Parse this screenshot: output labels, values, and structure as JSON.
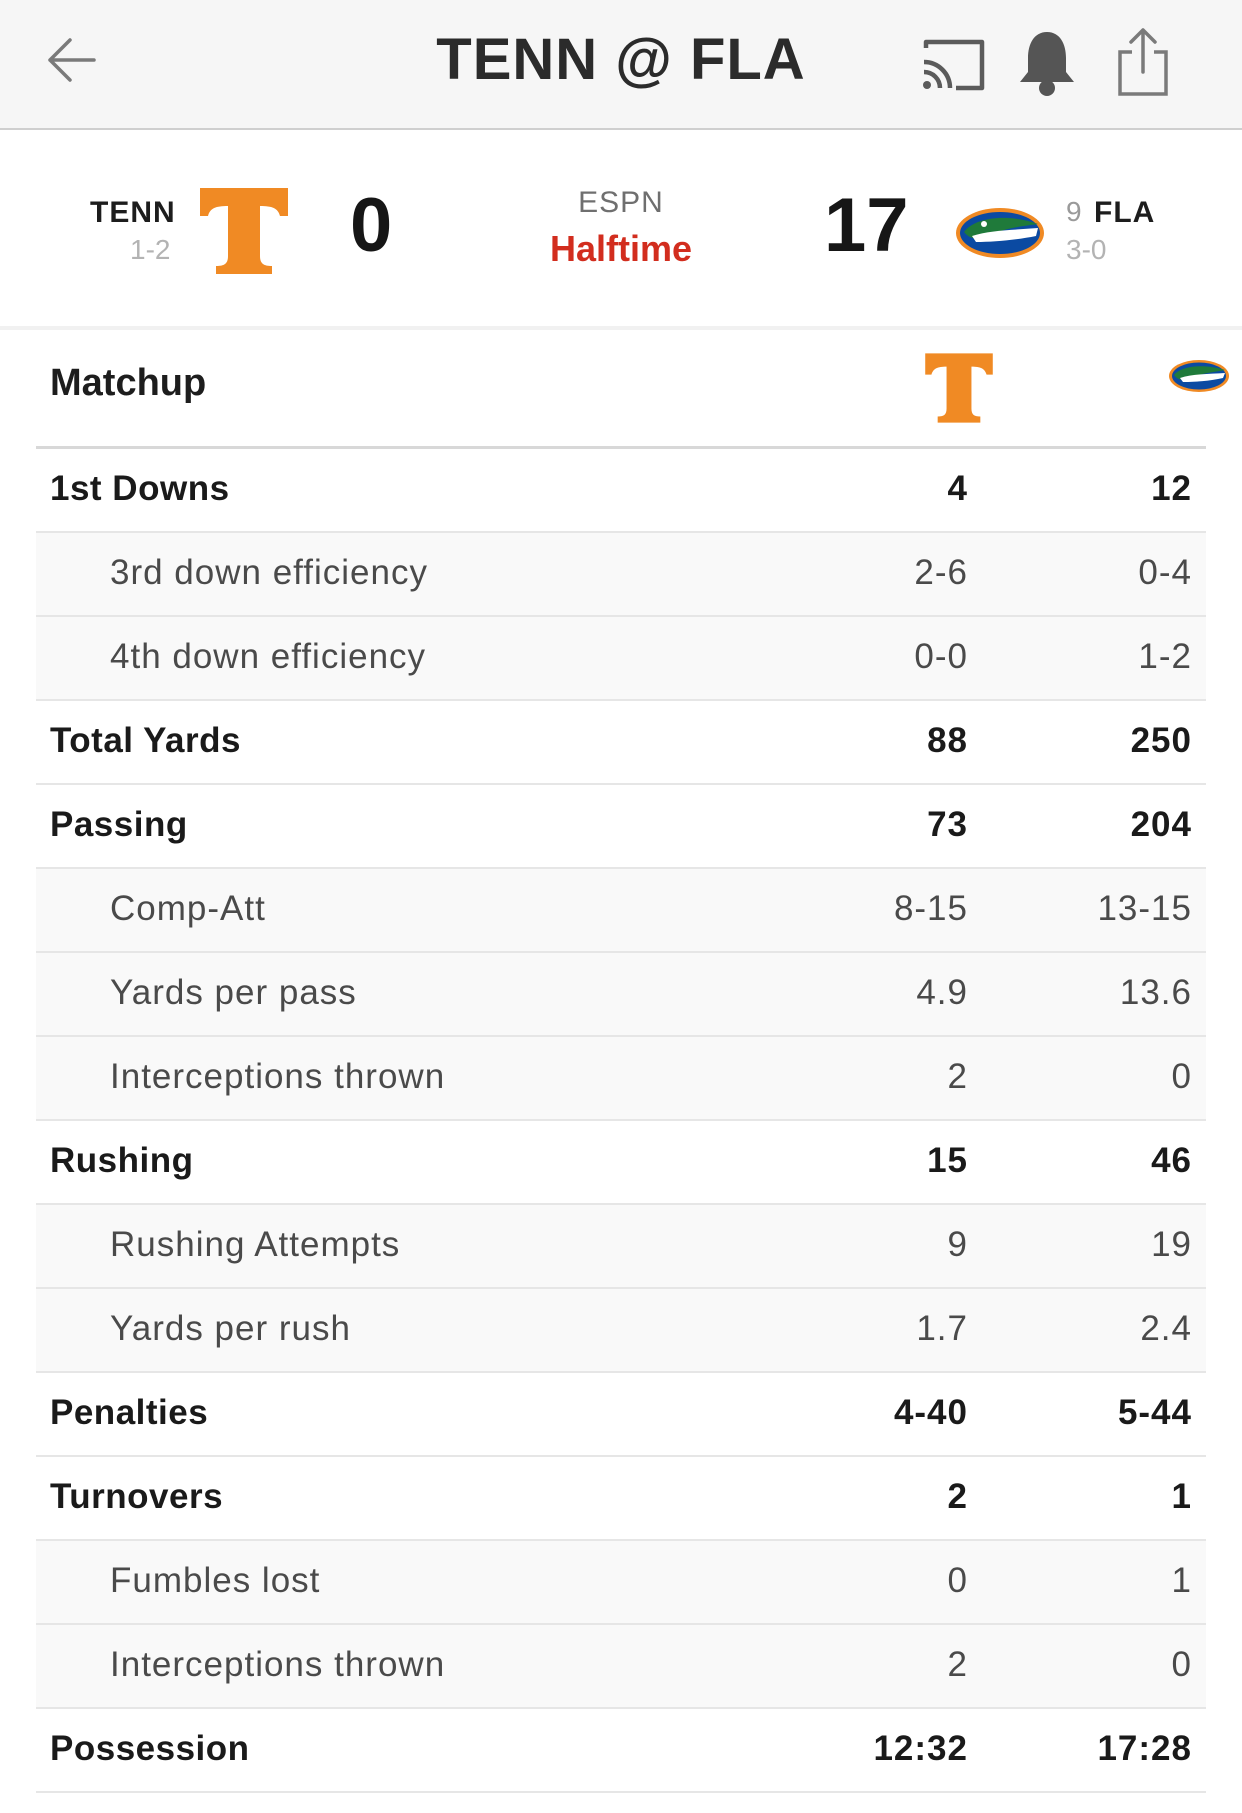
{
  "header": {
    "title": "TENN @ FLA",
    "icons": [
      "back-arrow-icon",
      "cast-icon",
      "bell-icon",
      "share-icon"
    ]
  },
  "game": {
    "network": "ESPN",
    "status": "Halftime",
    "away": {
      "abbr": "TENN",
      "record": "1-2",
      "score": "0",
      "color": "#f08a24"
    },
    "home": {
      "abbr": "FLA",
      "rank": "9",
      "record": "3-0",
      "score": "17",
      "color": "#0b4aa2"
    }
  },
  "matchup": {
    "title": "Matchup",
    "rows": [
      {
        "label": "1st Downs",
        "away": "4",
        "home": "12",
        "sub": false
      },
      {
        "label": "3rd down efficiency",
        "away": "2-6",
        "home": "0-4",
        "sub": true
      },
      {
        "label": "4th down efficiency",
        "away": "0-0",
        "home": "1-2",
        "sub": true
      },
      {
        "label": "Total Yards",
        "away": "88",
        "home": "250",
        "sub": false
      },
      {
        "label": "Passing",
        "away": "73",
        "home": "204",
        "sub": false
      },
      {
        "label": "Comp-Att",
        "away": "8-15",
        "home": "13-15",
        "sub": true
      },
      {
        "label": "Yards per pass",
        "away": "4.9",
        "home": "13.6",
        "sub": true
      },
      {
        "label": "Interceptions thrown",
        "away": "2",
        "home": "0",
        "sub": true
      },
      {
        "label": "Rushing",
        "away": "15",
        "home": "46",
        "sub": false
      },
      {
        "label": "Rushing Attempts",
        "away": "9",
        "home": "19",
        "sub": true
      },
      {
        "label": "Yards per rush",
        "away": "1.7",
        "home": "2.4",
        "sub": true
      },
      {
        "label": "Penalties",
        "away": "4-40",
        "home": "5-44",
        "sub": false
      },
      {
        "label": "Turnovers",
        "away": "2",
        "home": "1",
        "sub": false
      },
      {
        "label": "Fumbles lost",
        "away": "0",
        "home": "1",
        "sub": true
      },
      {
        "label": "Interceptions thrown",
        "away": "2",
        "home": "0",
        "sub": true
      },
      {
        "label": "Possession",
        "away": "12:32",
        "home": "17:28",
        "sub": false
      }
    ]
  }
}
